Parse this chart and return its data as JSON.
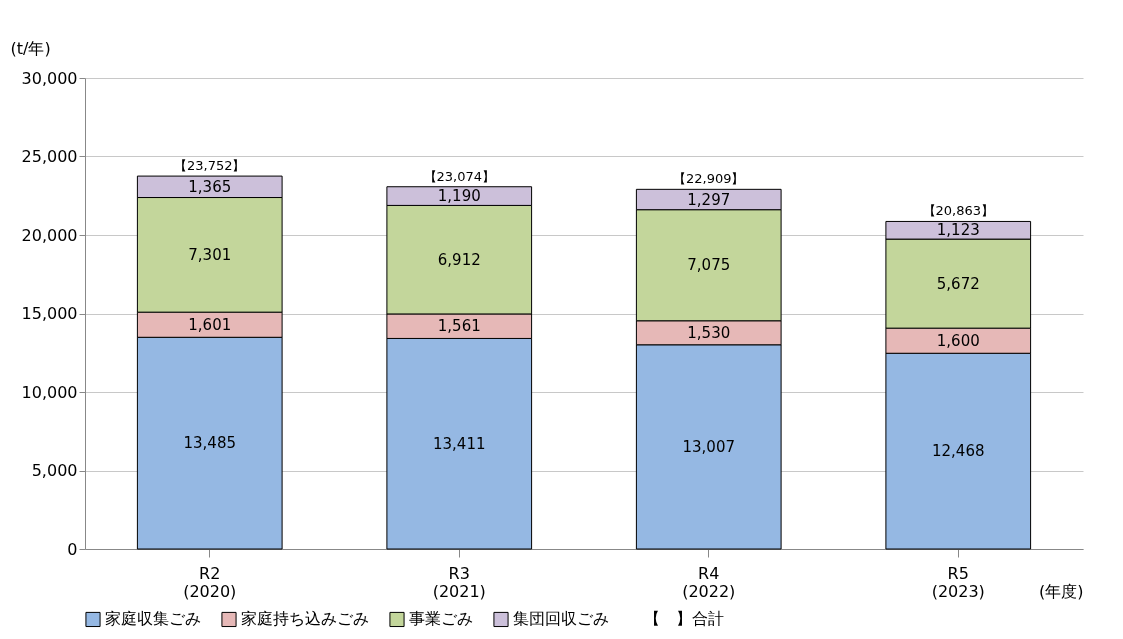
{
  "chart_data": {
    "type": "bar",
    "stacked": true,
    "ylabel": "(t/年)",
    "xlabel": "(年度)",
    "categories": [
      "R2\n(2020)",
      "R3\n(2021)",
      "R4\n(2022)",
      "R5\n(2023)"
    ],
    "series": [
      {
        "name": "家庭収集ごみ",
        "color": "#95b8e3",
        "values": [
          13485,
          13411,
          13007,
          12468
        ]
      },
      {
        "name": "家庭持ち込みごみ",
        "color": "#e6b8b7",
        "values": [
          1601,
          1561,
          1530,
          1600
        ]
      },
      {
        "name": "事業ごみ",
        "color": "#c3d69b",
        "values": [
          7301,
          6912,
          7075,
          5672
        ]
      },
      {
        "name": "集団回収ごみ",
        "color": "#ccc0da",
        "values": [
          1365,
          1190,
          1297,
          1123
        ]
      }
    ],
    "value_labels": [
      [
        "13,485",
        "13,411",
        "13,007",
        "12,468"
      ],
      [
        "1,601",
        "1,561",
        "1,530",
        "1,600"
      ],
      [
        "7,301",
        "6,912",
        "7,075",
        "5,672"
      ],
      [
        "1,365",
        "1,190",
        "1,297",
        "1,123"
      ]
    ],
    "totals": [
      "【23,752】",
      "【23,074】",
      "【22,909】",
      "【20,863】"
    ],
    "annotations": [
      "【　】合計"
    ],
    "ylim": [
      0,
      30000
    ],
    "yticks": [
      0,
      {
        "value": 5000,
        "label": "5,000"
      },
      {
        "value": 10000,
        "label": "10,000"
      },
      {
        "value": 15000,
        "label": "15,000"
      },
      {
        "value": 20000,
        "label": "20,000"
      },
      {
        "value": 25000,
        "label": "25,000"
      },
      {
        "value": 30000,
        "label": "30,000"
      }
    ],
    "grid": "y",
    "legend": "bottom"
  }
}
